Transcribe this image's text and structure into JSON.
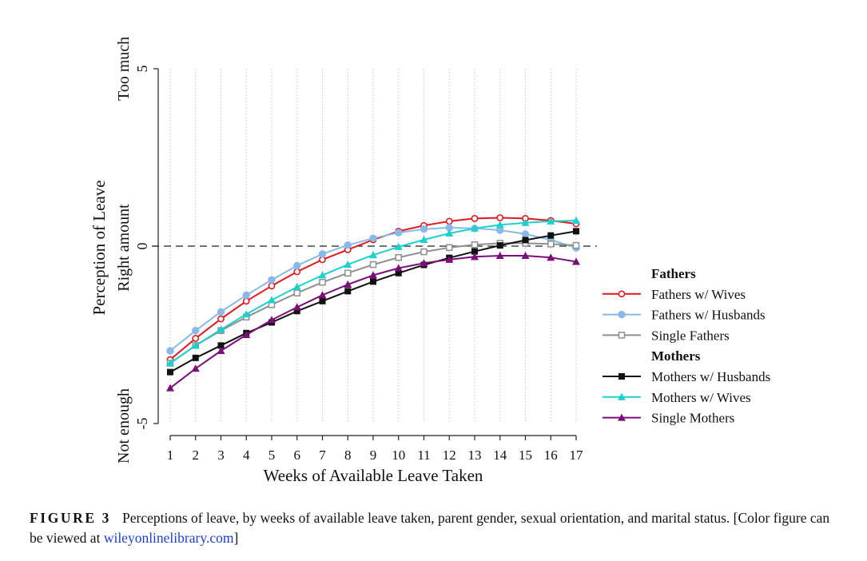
{
  "chart_data": {
    "type": "line",
    "x": [
      1,
      2,
      3,
      4,
      5,
      6,
      7,
      8,
      9,
      10,
      11,
      12,
      13,
      14,
      15,
      16,
      17
    ],
    "xlabel": "Weeks of Available Leave Taken",
    "ylabel": "Perception of Leave",
    "ylim": [
      -5,
      5
    ],
    "yticks": [
      {
        "value": 5,
        "label": "5",
        "desc": "Too much"
      },
      {
        "value": 0,
        "label": "0",
        "desc": "Right amount"
      },
      {
        "value": -5,
        "label": "-5",
        "desc": "Not enough"
      }
    ],
    "reference_line": 0,
    "grid": "vertical dotted",
    "legend_position": "right",
    "legend_groups": [
      "Fathers",
      "Mothers"
    ],
    "series": [
      {
        "name": "Fathers w/ Wives",
        "group": "Fathers",
        "color": "#e0191f",
        "marker": "circle-open",
        "values": [
          -3.2,
          -2.6,
          -2.05,
          -1.55,
          -1.12,
          -0.72,
          -0.38,
          -0.1,
          0.18,
          0.42,
          0.58,
          0.7,
          0.78,
          0.8,
          0.78,
          0.72,
          0.63
        ]
      },
      {
        "name": "Fathers w/ Husbands",
        "group": "Fathers",
        "color": "#8ab8e8",
        "marker": "circle",
        "values": [
          -2.95,
          -2.38,
          -1.85,
          -1.38,
          -0.95,
          -0.55,
          -0.22,
          0.03,
          0.22,
          0.38,
          0.48,
          0.52,
          0.5,
          0.45,
          0.34,
          0.18,
          -0.05
        ]
      },
      {
        "name": "Single Fathers",
        "group": "Fathers",
        "color": "#8f8f8f",
        "marker": "square-open",
        "values": [
          -3.3,
          -2.8,
          -2.38,
          -2.0,
          -1.65,
          -1.32,
          -1.02,
          -0.76,
          -0.52,
          -0.32,
          -0.16,
          -0.04,
          0.04,
          0.08,
          0.08,
          0.06,
          0.02
        ]
      },
      {
        "name": "Mothers w/ Husbands",
        "group": "Mothers",
        "color": "#111111",
        "marker": "square",
        "values": [
          -3.55,
          -3.15,
          -2.8,
          -2.45,
          -2.15,
          -1.83,
          -1.55,
          -1.27,
          -1.0,
          -0.76,
          -0.53,
          -0.33,
          -0.15,
          0.02,
          0.17,
          0.3,
          0.42
        ]
      },
      {
        "name": "Mothers w/ Wives",
        "group": "Mothers",
        "color": "#1ecfcf",
        "marker": "triangle",
        "values": [
          -3.3,
          -2.8,
          -2.35,
          -1.92,
          -1.52,
          -1.15,
          -0.82,
          -0.52,
          -0.25,
          -0.02,
          0.18,
          0.36,
          0.5,
          0.6,
          0.66,
          0.7,
          0.72
        ]
      },
      {
        "name": "Single Mothers",
        "group": "Mothers",
        "color": "#7a0f7a",
        "marker": "triangle",
        "values": [
          -4.0,
          -3.45,
          -2.95,
          -2.5,
          -2.08,
          -1.72,
          -1.38,
          -1.08,
          -0.82,
          -0.62,
          -0.48,
          -0.38,
          -0.3,
          -0.27,
          -0.27,
          -0.32,
          -0.44
        ]
      }
    ]
  },
  "caption": {
    "label": "FIGURE 3",
    "text": "Perceptions of leave, by weeks of available leave taken, parent gender, sexual orientation, and marital status. [Color figure can be viewed at ",
    "link": "wileyonlinelibrary.com",
    "end": "]"
  }
}
